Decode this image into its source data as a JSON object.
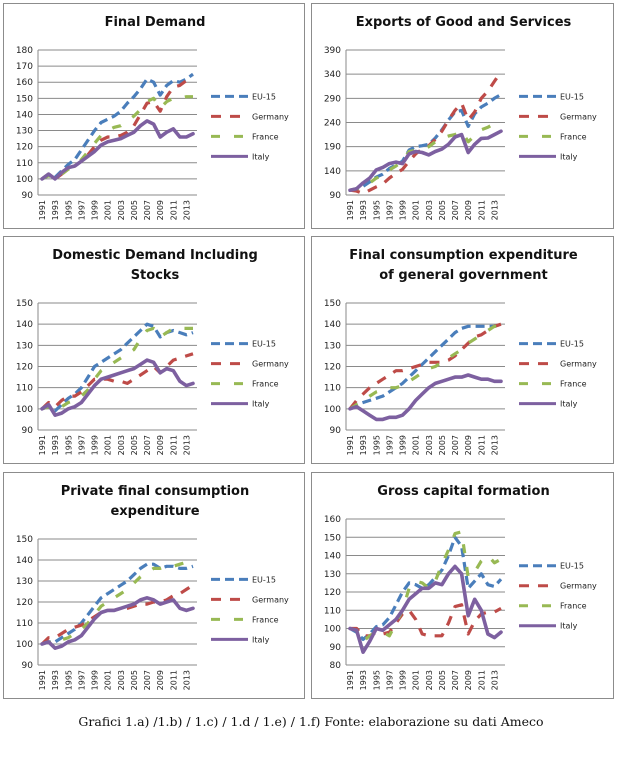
{
  "caption": "Grafici 1.a) /1.b) / 1.c) / 1.d / 1.e) / 1.f) Fonte: elaborazione su dati Ameco",
  "legend_entries": [
    "EU-15",
    "Germany",
    "France",
    "Italy"
  ],
  "series_colors": {
    "EU-15": "#4a7ebb",
    "Germany": "#be4b48",
    "France": "#98b954",
    "Italy": "#7d60a0"
  },
  "chart_data": [
    {
      "type": "line",
      "title": "Final Demand",
      "x": [
        1991,
        1992,
        1993,
        1994,
        1995,
        1996,
        1997,
        1998,
        1999,
        2000,
        2001,
        2002,
        2003,
        2004,
        2005,
        2006,
        2007,
        2008,
        2009,
        2010,
        2011,
        2012,
        2013,
        2014
      ],
      "xticks": [
        "1991",
        "1993",
        "1995",
        "1997",
        "1999",
        "2001",
        "2003",
        "2005",
        "2007",
        "2009",
        "2011",
        "2013"
      ],
      "yticks": [
        "90",
        "100",
        "110",
        "120",
        "130",
        "140",
        "150",
        "160",
        "170",
        "180"
      ],
      "ylim": [
        90,
        180
      ],
      "legend": "right",
      "grid": true,
      "series": [
        {
          "name": "EU-15",
          "values": [
            100,
            102,
            101,
            105,
            109,
            112,
            118,
            124,
            130,
            135,
            137,
            139,
            142,
            147,
            151,
            156,
            162,
            160,
            152,
            158,
            161,
            160,
            162,
            165
          ]
        },
        {
          "name": "Germany",
          "values": [
            100,
            103,
            100,
            103,
            106,
            108,
            111,
            115,
            120,
            124,
            126,
            126,
            127,
            129,
            133,
            140,
            147,
            148,
            142,
            151,
            157,
            158,
            161,
            164
          ]
        },
        {
          "name": "France",
          "values": [
            100,
            102,
            100,
            103,
            106,
            108,
            112,
            117,
            122,
            127,
            130,
            132,
            133,
            136,
            139,
            143,
            148,
            150,
            144,
            148,
            150,
            150,
            151,
            151
          ]
        },
        {
          "name": "Italy",
          "values": [
            100,
            103,
            100,
            104,
            107,
            108,
            111,
            114,
            117,
            121,
            123,
            124,
            125,
            127,
            129,
            133,
            136,
            134,
            126,
            129,
            131,
            126,
            126,
            128
          ]
        }
      ]
    },
    {
      "type": "line",
      "title": "Exports of Good and Services",
      "x": [
        1991,
        1992,
        1993,
        1994,
        1995,
        1996,
        1997,
        1998,
        1999,
        2000,
        2001,
        2002,
        2003,
        2004,
        2005,
        2006,
        2007,
        2008,
        2009,
        2010,
        2011,
        2012,
        2013,
        2014
      ],
      "xticks": [
        "1991",
        "1993",
        "1995",
        "1997",
        "1999",
        "2001",
        "2003",
        "2005",
        "2007",
        "2009",
        "2011",
        "2013"
      ],
      "yticks": [
        "90",
        "140",
        "190",
        "240",
        "290",
        "340",
        "390"
      ],
      "ylim": [
        90,
        390
      ],
      "legend": "right",
      "grid": true,
      "series": [
        {
          "name": "EU-15",
          "values": [
            100,
            103,
            108,
            117,
            127,
            133,
            145,
            152,
            160,
            183,
            190,
            192,
            195,
            208,
            225,
            245,
            262,
            265,
            232,
            258,
            272,
            280,
            290,
            298
          ]
        },
        {
          "name": "Germany",
          "values": [
            100,
            98,
            93,
            100,
            107,
            113,
            125,
            135,
            143,
            160,
            175,
            185,
            192,
            205,
            222,
            245,
            265,
            280,
            245,
            262,
            290,
            305,
            325,
            345
          ]
        },
        {
          "name": "France",
          "values": [
            100,
            103,
            105,
            115,
            125,
            130,
            142,
            150,
            160,
            180,
            182,
            185,
            190,
            200,
            208,
            212,
            215,
            222,
            200,
            213,
            225,
            230,
            238,
            242
          ]
        },
        {
          "name": "Italy",
          "values": [
            100,
            103,
            115,
            125,
            142,
            147,
            155,
            158,
            155,
            175,
            180,
            178,
            173,
            180,
            185,
            195,
            210,
            215,
            178,
            195,
            207,
            208,
            215,
            222
          ]
        }
      ]
    },
    {
      "type": "line",
      "title": "Domestic Demand Including Stocks",
      "x": [
        1991,
        1992,
        1993,
        1994,
        1995,
        1996,
        1997,
        1998,
        1999,
        2000,
        2001,
        2002,
        2003,
        2004,
        2005,
        2006,
        2007,
        2008,
        2009,
        2010,
        2011,
        2012,
        2013,
        2014
      ],
      "xticks": [
        "1991",
        "1993",
        "1995",
        "1997",
        "1999",
        "2001",
        "2003",
        "2005",
        "2007",
        "2009",
        "2011",
        "2013"
      ],
      "yticks": [
        "90",
        "100",
        "110",
        "120",
        "130",
        "140",
        "150"
      ],
      "ylim": [
        90,
        150
      ],
      "legend": "right",
      "grid": true,
      "series": [
        {
          "name": "EU-15",
          "values": [
            100,
            101,
            99,
            102,
            105,
            107,
            110,
            115,
            120,
            122,
            124,
            126,
            128,
            131,
            134,
            137,
            140,
            139,
            134,
            136,
            137,
            136,
            135,
            136
          ]
        },
        {
          "name": "Germany",
          "values": [
            100,
            103,
            101,
            104,
            106,
            106,
            108,
            111,
            114,
            114,
            114,
            113,
            113,
            112,
            114,
            116,
            118,
            120,
            117,
            120,
            123,
            124,
            125,
            126
          ]
        },
        {
          "name": "France",
          "values": [
            100,
            101,
            99,
            101,
            103,
            104,
            106,
            109,
            114,
            118,
            120,
            122,
            124,
            126,
            128,
            133,
            137,
            138,
            134,
            136,
            138,
            138,
            138,
            138
          ]
        },
        {
          "name": "Italy",
          "values": [
            100,
            102,
            97,
            98,
            100,
            101,
            103,
            107,
            111,
            114,
            115,
            116,
            117,
            118,
            119,
            121,
            123,
            122,
            117,
            119,
            118,
            113,
            111,
            112
          ]
        }
      ]
    },
    {
      "type": "line",
      "title": "Final consumption expenditure of general government",
      "x": [
        1991,
        1992,
        1993,
        1994,
        1995,
        1996,
        1997,
        1998,
        1999,
        2000,
        2001,
        2002,
        2003,
        2004,
        2005,
        2006,
        2007,
        2008,
        2009,
        2010,
        2011,
        2012,
        2013,
        2014
      ],
      "xticks": [
        "1991",
        "1993",
        "1995",
        "1997",
        "1999",
        "2001",
        "2003",
        "2005",
        "2007",
        "2009",
        "2011",
        "2013"
      ],
      "yticks": [
        "90",
        "100",
        "110",
        "120",
        "130",
        "140",
        "150"
      ],
      "ylim": [
        90,
        150
      ],
      "legend": "right",
      "grid": true,
      "series": [
        {
          "name": "EU-15",
          "values": [
            100,
            102,
            103,
            104,
            105,
            106,
            108,
            110,
            112,
            115,
            118,
            121,
            124,
            127,
            130,
            133,
            136,
            138,
            139,
            139,
            139,
            139,
            139,
            140
          ]
        },
        {
          "name": "Germany",
          "values": [
            100,
            104,
            107,
            110,
            112,
            114,
            116,
            118,
            118,
            119,
            120,
            121,
            122,
            122,
            122,
            123,
            125,
            128,
            131,
            134,
            135,
            137,
            139,
            140
          ]
        },
        {
          "name": "France",
          "values": [
            100,
            102,
            104,
            106,
            108,
            109,
            110,
            110,
            111,
            113,
            115,
            117,
            119,
            120,
            122,
            124,
            126,
            128,
            131,
            133,
            135,
            137,
            139,
            139
          ]
        },
        {
          "name": "Italy",
          "values": [
            100,
            101,
            99,
            97,
            95,
            95,
            96,
            96,
            97,
            100,
            104,
            107,
            110,
            112,
            113,
            114,
            115,
            115,
            116,
            115,
            114,
            114,
            113,
            113
          ]
        }
      ]
    },
    {
      "type": "line",
      "title": "Private final consumption expenditure",
      "x": [
        1991,
        1992,
        1993,
        1994,
        1995,
        1996,
        1997,
        1998,
        1999,
        2000,
        2001,
        2002,
        2003,
        2004,
        2005,
        2006,
        2007,
        2008,
        2009,
        2010,
        2011,
        2012,
        2013,
        2014
      ],
      "xticks": [
        "1991",
        "1993",
        "1995",
        "1997",
        "1999",
        "2001",
        "2003",
        "2005",
        "2007",
        "2009",
        "2011",
        "2013"
      ],
      "yticks": [
        "90",
        "100",
        "110",
        "120",
        "130",
        "140",
        "150"
      ],
      "ylim": [
        90,
        150
      ],
      "legend": "right",
      "grid": true,
      "series": [
        {
          "name": "EU-15",
          "values": [
            100,
            101,
            101,
            103,
            105,
            107,
            110,
            114,
            118,
            122,
            124,
            126,
            128,
            130,
            133,
            136,
            138,
            138,
            136,
            137,
            137,
            136,
            136,
            137
          ]
        },
        {
          "name": "Germany",
          "values": [
            100,
            103,
            103,
            105,
            107,
            108,
            109,
            111,
            113,
            115,
            116,
            116,
            117,
            117,
            118,
            119,
            119,
            120,
            120,
            121,
            123,
            124,
            126,
            128
          ]
        },
        {
          "name": "France",
          "values": [
            100,
            101,
            100,
            102,
            103,
            105,
            107,
            110,
            114,
            118,
            120,
            122,
            124,
            126,
            129,
            132,
            134,
            136,
            136,
            137,
            137,
            138,
            139,
            140
          ]
        },
        {
          "name": "Italy",
          "values": [
            100,
            101,
            98,
            99,
            101,
            102,
            104,
            108,
            112,
            115,
            116,
            116,
            117,
            118,
            119,
            121,
            122,
            121,
            119,
            120,
            121,
            117,
            116,
            117
          ]
        }
      ]
    },
    {
      "type": "line",
      "title": "Gross capital formation",
      "x": [
        1991,
        1992,
        1993,
        1994,
        1995,
        1996,
        1997,
        1998,
        1999,
        2000,
        2001,
        2002,
        2003,
        2004,
        2005,
        2006,
        2007,
        2008,
        2009,
        2010,
        2011,
        2012,
        2013,
        2014
      ],
      "xticks": [
        "1991",
        "1993",
        "1995",
        "1997",
        "1999",
        "2001",
        "2003",
        "2005",
        "2007",
        "2009",
        "2011",
        "2013"
      ],
      "yticks": [
        "80",
        "90",
        "100",
        "110",
        "120",
        "130",
        "140",
        "150",
        "160"
      ],
      "ylim": [
        80,
        160
      ],
      "legend": "right",
      "grid": true,
      "series": [
        {
          "name": "EU-15",
          "values": [
            100,
            98,
            94,
            97,
            101,
            102,
            106,
            113,
            120,
            125,
            124,
            122,
            124,
            128,
            132,
            140,
            150,
            145,
            122,
            126,
            130,
            124,
            123,
            127
          ]
        },
        {
          "name": "Germany",
          "values": [
            100,
            100,
            96,
            96,
            98,
            97,
            98,
            103,
            108,
            110,
            105,
            97,
            96,
            96,
            96,
            103,
            112,
            113,
            97,
            104,
            108,
            109,
            109,
            111
          ]
        },
        {
          "name": "France",
          "values": [
            100,
            99,
            93,
            96,
            98,
            98,
            96,
            103,
            110,
            122,
            126,
            125,
            122,
            126,
            135,
            143,
            152,
            153,
            128,
            131,
            137,
            140,
            136,
            138
          ]
        },
        {
          "name": "Italy",
          "values": [
            100,
            99,
            87,
            93,
            100,
            99,
            102,
            105,
            110,
            116,
            119,
            122,
            122,
            125,
            124,
            130,
            134,
            130,
            107,
            116,
            110,
            97,
            95,
            98
          ]
        }
      ]
    }
  ]
}
